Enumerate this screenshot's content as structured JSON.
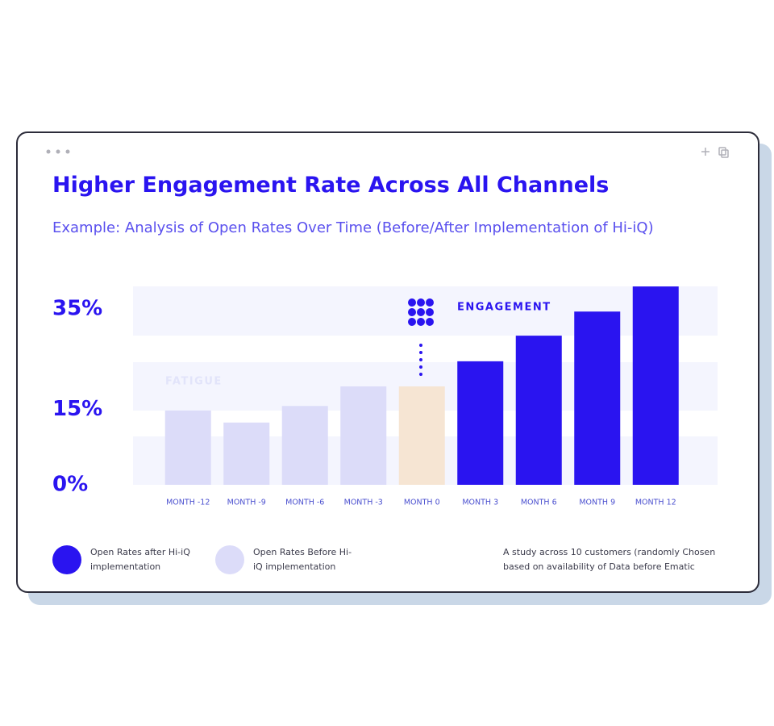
{
  "chart_data": {
    "type": "bar",
    "title": "Higher Engagement Rate Across All Channels",
    "subtitle": "Example: Analysis of Open Rates Over Time (Before/After Implementation of Hi-iQ)",
    "categories": [
      "MONTH -12",
      "MONTH -9",
      "MONTH -6",
      "MONTH -3",
      "MONTH 0",
      "MONTH 3",
      "MONTH 6",
      "MONTH 9",
      "MONTH 12"
    ],
    "values": [
      14.8,
      12.4,
      15.7,
      19.6,
      19.6,
      24.6,
      29.7,
      34.5,
      39.5
    ],
    "colors": [
      "#dcdcf9",
      "#dcdcf9",
      "#dcdcf9",
      "#dcdcf9",
      "#f6e5d3",
      "#2a14f0",
      "#2a14f0",
      "#2a14f0",
      "#2a14f0"
    ],
    "ylim": [
      0,
      40
    ],
    "yticks": [
      {
        "value": 0,
        "label": "0%"
      },
      {
        "value": 15,
        "label": "15%"
      },
      {
        "value": 35,
        "label": "35%"
      }
    ],
    "annotations": [
      "ENGAGEMENT",
      "FATIGUE"
    ],
    "legend": [
      {
        "name": "Open Rates after Hi-iQ implementation",
        "color": "#2a14f0"
      },
      {
        "name": "Open Rates Before Hi-iQ implementation",
        "color": "#dcdcf9"
      }
    ],
    "footnote": "A study across 10 customers (randomly Chosen based on availability of Data before Ematic"
  }
}
